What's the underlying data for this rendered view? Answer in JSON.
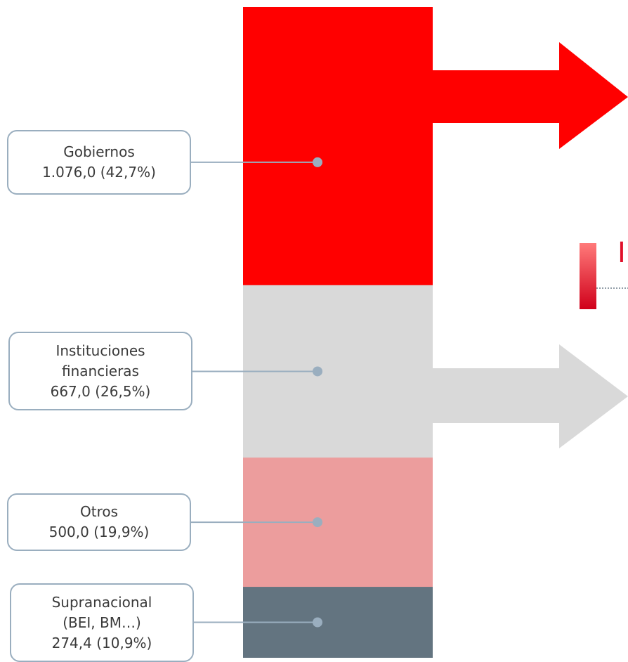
{
  "chart_data": {
    "type": "bar",
    "stacked": true,
    "categories": [
      "Gobiernos",
      "Instituciones financieras",
      "Otros",
      "Supranacional (BEI, BM…)"
    ],
    "values": [
      1076.0,
      667.0,
      500.0,
      274.4
    ],
    "shares_pct": [
      42.7,
      26.5,
      19.9,
      10.9
    ],
    "colors": [
      "#ff0000",
      "#d9d9d9",
      "#ec9d9d",
      "#637480"
    ],
    "labels": [
      {
        "lines": [
          "Gobiernos",
          "1.076,0 (42,7%)"
        ]
      },
      {
        "lines": [
          "Instituciones",
          "financieras",
          "667,0 (26,5%)"
        ]
      },
      {
        "lines": [
          "Otros",
          "500,0 (19,9%)"
        ]
      },
      {
        "lines": [
          "Supranacional",
          "(BEI, BM…)",
          "274,4 (10,9%)"
        ]
      }
    ],
    "arrows": [
      {
        "color": "#ff0000"
      },
      {
        "color": "#d9d9d9"
      }
    ],
    "connector_color": "#9aaebf"
  },
  "partial_text": "I"
}
